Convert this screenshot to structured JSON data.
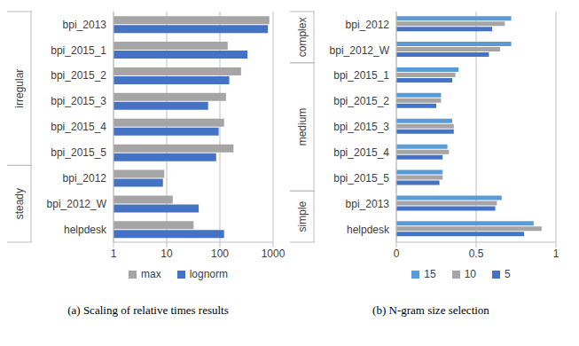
{
  "chart_data": [
    {
      "type": "bar",
      "orientation": "horizontal",
      "log": "x",
      "grid": true,
      "legend": "bottom",
      "caption": "(a) Scaling of relative times results",
      "categories": [
        "bpi_2013",
        "bpi_2015_1",
        "bpi_2015_2",
        "bpi_2015_3",
        "bpi_2015_4",
        "bpi_2015_5",
        "bpi_2012",
        "bpi_2012_W",
        "helpdesk"
      ],
      "groups": [
        {
          "name": "irregular",
          "categories": [
            "bpi_2013",
            "bpi_2015_1",
            "bpi_2015_2",
            "bpi_2015_3",
            "bpi_2015_4",
            "bpi_2015_5"
          ]
        },
        {
          "name": "steady",
          "categories": [
            "bpi_2012",
            "bpi_2012_W",
            "helpdesk"
          ]
        }
      ],
      "series": [
        {
          "name": "max",
          "color": "#a5a5a5",
          "values": [
            850,
            140,
            250,
            130,
            120,
            180,
            9,
            13,
            32
          ]
        },
        {
          "name": "lognorm",
          "color": "#4472c4",
          "values": [
            800,
            330,
            150,
            60,
            95,
            85,
            8.5,
            40,
            120
          ]
        }
      ],
      "xlim": [
        1,
        1000
      ],
      "xticks": [
        1,
        10,
        100,
        1000
      ]
    },
    {
      "type": "bar",
      "orientation": "horizontal",
      "grid": true,
      "legend": "bottom",
      "caption": "(b) N-gram size selection",
      "categories": [
        "bpi_2012",
        "bpi_2012_W",
        "bpi_2015_1",
        "bpi_2015_2",
        "bpi_2015_3",
        "bpi_2015_4",
        "bpi_2015_5",
        "bpi_2013",
        "helpdesk"
      ],
      "groups": [
        {
          "name": "complex",
          "categories": [
            "bpi_2012",
            "bpi_2012_W"
          ]
        },
        {
          "name": "medium",
          "categories": [
            "bpi_2015_1",
            "bpi_2015_2",
            "bpi_2015_3",
            "bpi_2015_4",
            "bpi_2015_5"
          ]
        },
        {
          "name": "simple",
          "categories": [
            "bpi_2013",
            "helpdesk"
          ]
        }
      ],
      "series": [
        {
          "name": "15",
          "color": "#5b9bd5",
          "values": [
            0.72,
            0.72,
            0.39,
            0.28,
            0.35,
            0.32,
            0.29,
            0.66,
            0.86
          ]
        },
        {
          "name": "10",
          "color": "#a5a5a5",
          "values": [
            0.68,
            0.65,
            0.37,
            0.28,
            0.36,
            0.33,
            0.29,
            0.63,
            0.91
          ]
        },
        {
          "name": "5",
          "color": "#4472c4",
          "values": [
            0.6,
            0.58,
            0.35,
            0.25,
            0.36,
            0.29,
            0.27,
            0.62,
            0.8
          ]
        }
      ],
      "xlim": [
        0,
        1
      ],
      "xticks": [
        0,
        0.5,
        1
      ]
    }
  ]
}
